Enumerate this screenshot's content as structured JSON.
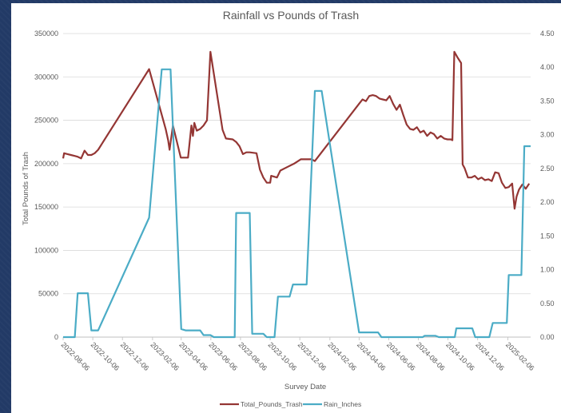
{
  "chart_data": {
    "type": "line",
    "title": "Rainfall vs Pounds of Trash",
    "xlabel": "Survey Date",
    "ylabel": "Total Pounds of Trash",
    "ylim": [
      0,
      350000
    ],
    "y2lim": [
      0,
      4.5
    ],
    "y_ticks": [
      "0",
      "50000",
      "100000",
      "150000",
      "200000",
      "250000",
      "300000",
      "350000"
    ],
    "y2_ticks": [
      "0.00",
      "0.50",
      "1.00",
      "1.50",
      "2.00",
      "2.50",
      "3.00",
      "3.50",
      "4.00",
      "4.50"
    ],
    "x_ticks": [
      "2022-08-06",
      "2022-10-06",
      "2022-12-06",
      "2023-02-06",
      "2023-04-06",
      "2023-06-06",
      "2023-08-06",
      "2023-10-06",
      "2023-12-06",
      "2024-02-06",
      "2024-04-06",
      "2024-06-06",
      "2024-08-06",
      "2024-10-06",
      "2024-12-06",
      "2025-02-06"
    ],
    "xlim": [
      "2022-08-06",
      "2025-03-25"
    ],
    "grid": true,
    "legend": "bottom",
    "series": [
      {
        "name": "Total_Pounds_Trash",
        "axis": "left",
        "color": "#943634",
        "points": [
          [
            "2022-08-06",
            206000
          ],
          [
            "2022-08-08",
            212000
          ],
          [
            "2022-08-15",
            211000
          ],
          [
            "2022-08-22",
            210000
          ],
          [
            "2022-08-29",
            209000
          ],
          [
            "2022-09-05",
            208000
          ],
          [
            "2022-09-12",
            206000
          ],
          [
            "2022-09-19",
            215000
          ],
          [
            "2022-09-26",
            210000
          ],
          [
            "2022-10-03",
            210000
          ],
          [
            "2022-10-10",
            212000
          ],
          [
            "2022-10-17",
            216000
          ],
          [
            "2023-01-30",
            309000
          ],
          [
            "2023-03-05",
            240000
          ],
          [
            "2023-03-10",
            227000
          ],
          [
            "2023-03-13",
            216000
          ],
          [
            "2023-03-20",
            244000
          ],
          [
            "2023-04-05",
            207000
          ],
          [
            "2023-04-20",
            207000
          ],
          [
            "2023-04-27",
            244000
          ],
          [
            "2023-04-30",
            232000
          ],
          [
            "2023-05-03",
            247000
          ],
          [
            "2023-05-08",
            238000
          ],
          [
            "2023-05-15",
            240000
          ],
          [
            "2023-05-22",
            244000
          ],
          [
            "2023-05-29",
            250000
          ],
          [
            "2023-06-05",
            329000
          ],
          [
            "2023-06-30",
            239000
          ],
          [
            "2023-07-07",
            229000
          ],
          [
            "2023-07-21",
            228000
          ],
          [
            "2023-07-28",
            225000
          ],
          [
            "2023-08-04",
            220000
          ],
          [
            "2023-08-11",
            211000
          ],
          [
            "2023-08-18",
            213000
          ],
          [
            "2023-08-25",
            213000
          ],
          [
            "2023-09-08",
            212000
          ],
          [
            "2023-09-15",
            193000
          ],
          [
            "2023-09-22",
            184000
          ],
          [
            "2023-09-29",
            178000
          ],
          [
            "2023-10-06",
            178000
          ],
          [
            "2023-10-08",
            186000
          ],
          [
            "2023-10-20",
            184000
          ],
          [
            "2023-10-27",
            192000
          ],
          [
            "2023-11-10",
            196000
          ],
          [
            "2023-11-24",
            200000
          ],
          [
            "2023-12-08",
            205000
          ],
          [
            "2023-12-30",
            205000
          ],
          [
            "2024-01-06",
            203000
          ],
          [
            "2024-04-06",
            269000
          ],
          [
            "2024-04-13",
            274000
          ],
          [
            "2024-04-20",
            272000
          ],
          [
            "2024-04-27",
            278000
          ],
          [
            "2024-05-04",
            279000
          ],
          [
            "2024-05-11",
            278000
          ],
          [
            "2024-05-18",
            275000
          ],
          [
            "2024-05-25",
            274000
          ],
          [
            "2024-06-01",
            273000
          ],
          [
            "2024-06-08",
            278000
          ],
          [
            "2024-06-15",
            269000
          ],
          [
            "2024-06-22",
            262000
          ],
          [
            "2024-06-29",
            268000
          ],
          [
            "2024-07-06",
            256000
          ],
          [
            "2024-07-13",
            245000
          ],
          [
            "2024-07-20",
            240000
          ],
          [
            "2024-07-27",
            239000
          ],
          [
            "2024-08-03",
            242000
          ],
          [
            "2024-08-10",
            236000
          ],
          [
            "2024-08-17",
            238000
          ],
          [
            "2024-08-24",
            232000
          ],
          [
            "2024-08-31",
            236000
          ],
          [
            "2024-09-07",
            234000
          ],
          [
            "2024-09-14",
            229000
          ],
          [
            "2024-09-21",
            232000
          ],
          [
            "2024-09-28",
            229000
          ],
          [
            "2024-10-05",
            228000
          ],
          [
            "2024-10-12",
            228000
          ],
          [
            "2024-10-15",
            227000
          ],
          [
            "2024-10-19",
            329000
          ],
          [
            "2024-10-26",
            322000
          ],
          [
            "2024-11-02",
            316000
          ],
          [
            "2024-11-05",
            199000
          ],
          [
            "2024-11-09",
            195000
          ],
          [
            "2024-11-16",
            184000
          ],
          [
            "2024-11-23",
            184000
          ],
          [
            "2024-11-30",
            186000
          ],
          [
            "2024-12-07",
            182000
          ],
          [
            "2024-12-14",
            184000
          ],
          [
            "2024-12-21",
            181000
          ],
          [
            "2024-12-28",
            182000
          ],
          [
            "2025-01-04",
            180000
          ],
          [
            "2025-01-11",
            190000
          ],
          [
            "2025-01-18",
            189000
          ],
          [
            "2025-01-25",
            178000
          ],
          [
            "2025-02-01",
            172000
          ],
          [
            "2025-02-08",
            173000
          ],
          [
            "2025-02-15",
            177000
          ],
          [
            "2025-02-20",
            148000
          ],
          [
            "2025-02-24",
            162000
          ],
          [
            "2025-03-01",
            170000
          ],
          [
            "2025-03-08",
            176000
          ],
          [
            "2025-03-15",
            171000
          ],
          [
            "2025-03-22",
            177000
          ]
        ]
      },
      {
        "name": "Rain_Inches",
        "axis": "right",
        "color": "#4bacc6",
        "points": [
          [
            "2022-08-06",
            0.0
          ],
          [
            "2022-08-30",
            0.0
          ],
          [
            "2022-09-05",
            0.65
          ],
          [
            "2022-09-26",
            0.65
          ],
          [
            "2022-10-03",
            0.1
          ],
          [
            "2022-10-17",
            0.1
          ],
          [
            "2023-01-30",
            1.77
          ],
          [
            "2023-02-25",
            3.97
          ],
          [
            "2023-03-15",
            3.97
          ],
          [
            "2023-04-06",
            0.12
          ],
          [
            "2023-04-15",
            0.1
          ],
          [
            "2023-05-15",
            0.1
          ],
          [
            "2023-05-22",
            0.03
          ],
          [
            "2023-06-05",
            0.03
          ],
          [
            "2023-06-12",
            0.0
          ],
          [
            "2023-07-25",
            0.0
          ],
          [
            "2023-07-28",
            1.84
          ],
          [
            "2023-08-25",
            1.84
          ],
          [
            "2023-08-30",
            0.05
          ],
          [
            "2023-09-22",
            0.05
          ],
          [
            "2023-09-29",
            0.0
          ],
          [
            "2023-10-15",
            0.0
          ],
          [
            "2023-10-22",
            0.6
          ],
          [
            "2023-11-15",
            0.6
          ],
          [
            "2023-11-22",
            0.78
          ],
          [
            "2023-12-20",
            0.78
          ],
          [
            "2024-01-06",
            3.65
          ],
          [
            "2024-01-20",
            3.65
          ],
          [
            "2024-04-06",
            0.07
          ],
          [
            "2024-05-15",
            0.07
          ],
          [
            "2024-05-22",
            0.0
          ],
          [
            "2024-08-15",
            0.0
          ],
          [
            "2024-08-19",
            0.02
          ],
          [
            "2024-09-10",
            0.02
          ],
          [
            "2024-09-17",
            0.0
          ],
          [
            "2024-10-20",
            0.0
          ],
          [
            "2024-10-23",
            0.13
          ],
          [
            "2024-11-25",
            0.13
          ],
          [
            "2024-12-01",
            0.0
          ],
          [
            "2024-12-30",
            0.0
          ],
          [
            "2025-01-06",
            0.21
          ],
          [
            "2025-02-04",
            0.21
          ],
          [
            "2025-02-08",
            0.92
          ],
          [
            "2025-03-06",
            0.92
          ],
          [
            "2025-03-12",
            2.83
          ],
          [
            "2025-03-25",
            2.83
          ]
        ]
      }
    ]
  }
}
